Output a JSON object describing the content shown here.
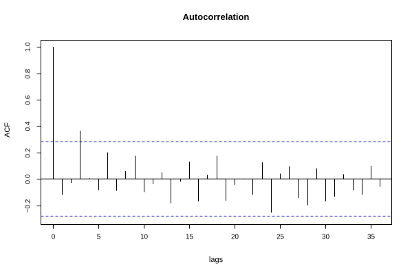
{
  "chart_data": {
    "type": "bar",
    "title": "Autocorrelation",
    "xlabel": "lags",
    "ylabel": "ACF",
    "xlim": [
      -1.3,
      37.3
    ],
    "ylim": [
      -0.345,
      1.05
    ],
    "x_ticks": [
      0,
      5,
      10,
      15,
      20,
      25,
      30,
      35
    ],
    "y_ticks": [
      -0.2,
      0.0,
      0.2,
      0.4,
      0.6,
      0.8,
      1.0
    ],
    "y_tick_labels": [
      "−0.2",
      "0.0",
      "0.2",
      "0.4",
      "0.6",
      "0.8",
      "1.0"
    ],
    "confidence_bounds": [
      0.282,
      -0.282
    ],
    "lags": [
      0,
      1,
      2,
      3,
      4,
      5,
      6,
      7,
      8,
      9,
      10,
      11,
      12,
      13,
      14,
      15,
      16,
      17,
      18,
      19,
      20,
      21,
      22,
      23,
      24,
      25,
      26,
      27,
      28,
      29,
      30,
      31,
      32,
      33,
      34,
      35,
      36
    ],
    "values": [
      1.0,
      -0.12,
      -0.03,
      0.365,
      0.005,
      -0.085,
      0.2,
      -0.09,
      0.06,
      0.175,
      -0.1,
      -0.04,
      0.05,
      -0.185,
      -0.02,
      0.13,
      -0.17,
      0.03,
      0.175,
      -0.165,
      -0.045,
      -0.005,
      -0.12,
      0.125,
      -0.255,
      0.04,
      0.095,
      -0.145,
      -0.2,
      0.08,
      -0.17,
      -0.135,
      0.035,
      -0.085,
      -0.12,
      0.1,
      -0.06
    ],
    "grid": false,
    "legend": "none"
  }
}
